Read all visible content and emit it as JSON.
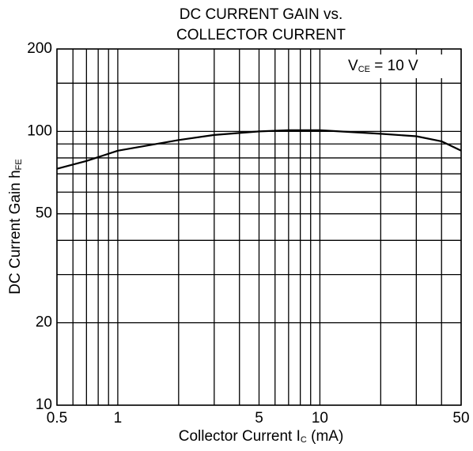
{
  "chart_data": {
    "type": "line",
    "title": [
      "DC CURRENT GAIN vs.",
      "COLLECTOR CURRENT"
    ],
    "xlabel": [
      "Collector Current  I",
      "C",
      "  (mA)"
    ],
    "ylabel": [
      "DC Current Gain  h",
      "FE"
    ],
    "annotation": [
      "V",
      "CE",
      " = 10 V"
    ],
    "x": [
      0.5,
      0.7,
      1,
      2,
      3,
      5,
      7,
      10,
      20,
      30,
      40,
      50
    ],
    "series": [
      {
        "name": "hFE",
        "color": "#000000",
        "values": [
          73,
          78,
          85,
          93,
          97,
          100,
          101,
          101,
          98,
          96,
          92,
          85
        ]
      }
    ],
    "xscale": "log",
    "yscale": "log",
    "xlim": [
      0.5,
      50
    ],
    "ylim": [
      10,
      200
    ],
    "xticks": [
      0.5,
      1,
      5,
      10,
      50
    ],
    "yticks": [
      10,
      20,
      50,
      100,
      200
    ],
    "xgrid": [
      0.6,
      0.7,
      0.8,
      0.9,
      2,
      3,
      4,
      6,
      7,
      8,
      9,
      20,
      30,
      40
    ],
    "ygrid": [
      30,
      40,
      60,
      70,
      80,
      90,
      150
    ],
    "grid": true
  }
}
